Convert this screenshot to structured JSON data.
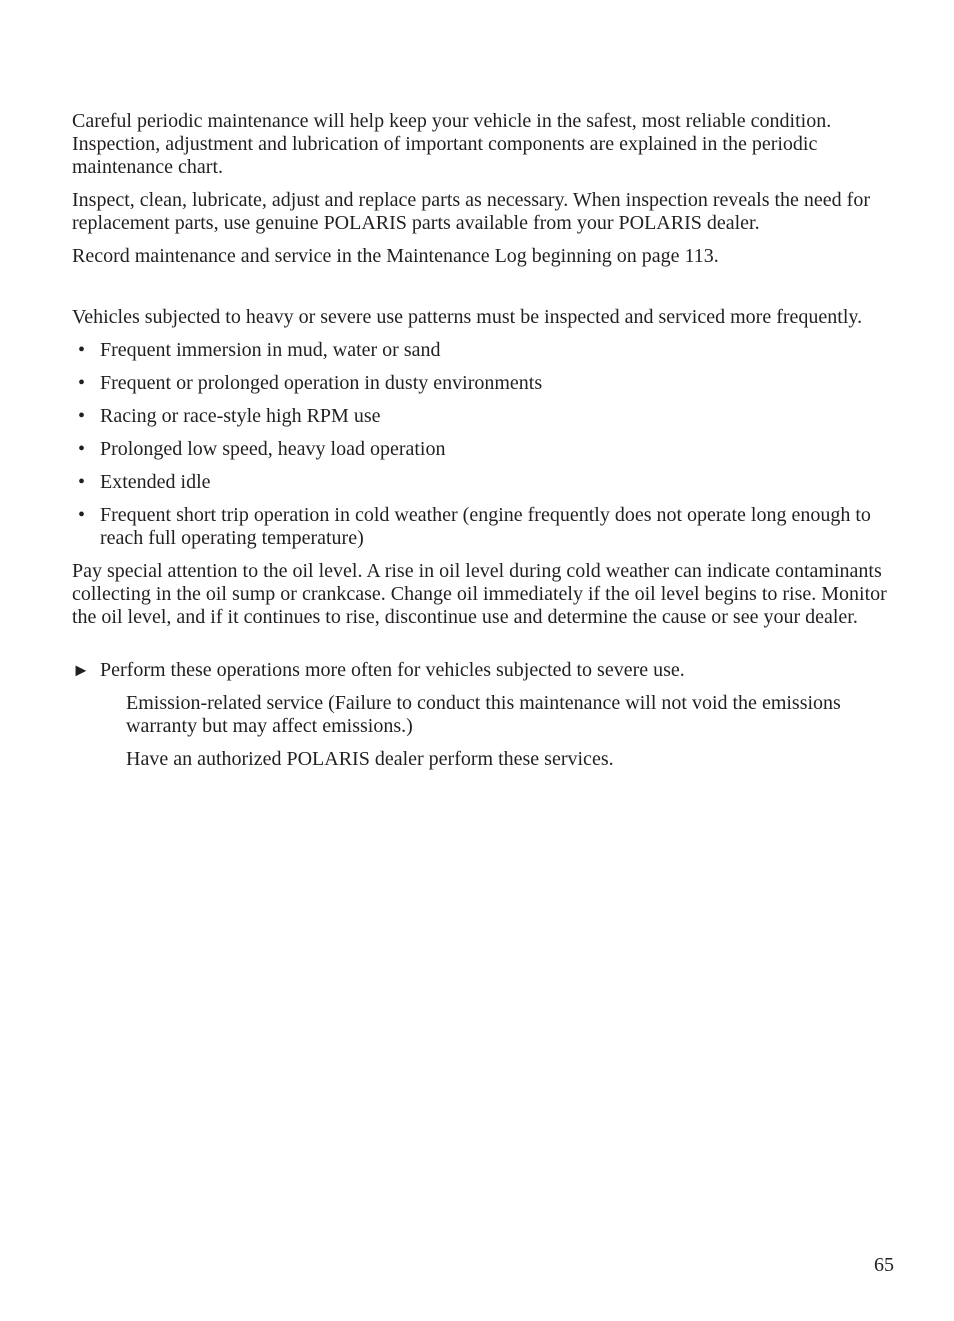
{
  "text_color": "#231f20",
  "background_color": "#ffffff",
  "font_family": "Times New Roman",
  "base_font_size_pt": 15,
  "intro": {
    "p1": "Careful periodic maintenance will help keep your vehicle in the safest, most reliable condition. Inspection, adjustment and lubrication of important components are explained in the periodic maintenance chart.",
    "p2": "Inspect, clean, lubricate, adjust and replace parts as necessary. When inspection reveals the need for replacement parts, use genuine POLARIS parts available from your POLARIS dealer.",
    "p3": "Record maintenance and service in the Maintenance Log beginning on page 113."
  },
  "severe": {
    "lead": "Vehicles subjected to heavy or severe use patterns must be inspected and serviced more frequently.",
    "items": [
      "Frequent immersion in mud, water or sand",
      "Frequent or prolonged operation in dusty environments",
      "Racing or race-style high RPM use",
      "Prolonged low speed, heavy load operation",
      "Extended idle",
      "Frequent short trip operation in cold weather (engine frequently does not operate long enough to reach full operating temperature)"
    ],
    "oil_note": "Pay special attention to the oil level. A rise in oil level during cold weather can indicate contaminants collecting in the oil sump or crankcase. Change oil immediately if the oil level begins to rise. Monitor the oil level, and if it continues to rise, discontinue use and determine the cause or see your dealer."
  },
  "key": {
    "arrow_marker": "►",
    "arrow_text": "Perform these operations more often for vehicles subjected to severe use.",
    "emission_text": "Emission-related service (Failure to conduct this maintenance will not void the emissions warranty but may affect emissions.)",
    "dealer_text": "Have an authorized POLARIS dealer perform these services."
  },
  "page_number": "65"
}
